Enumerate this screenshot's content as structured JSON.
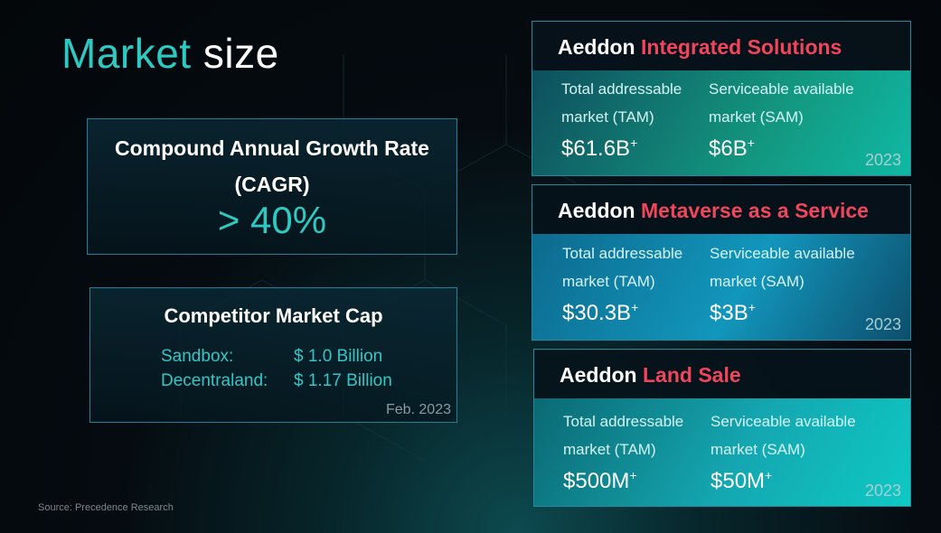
{
  "slide": {
    "title_accent": "Market",
    "title_rest": " size",
    "source": "Source: Precedence Research"
  },
  "cagr": {
    "label": "Compound Annual Growth Rate (CAGR)",
    "value": "> 40%"
  },
  "competitors": {
    "title": "Competitor Market Cap",
    "rows": [
      {
        "name": "Sandbox:",
        "value": "$ 1.0 Billion"
      },
      {
        "name": "Decentraland:",
        "value": "$ 1.17 Billion"
      }
    ],
    "date": "Feb. 2023"
  },
  "cards": [
    {
      "brand": "Aeddon",
      "product": "Integrated Solutions",
      "tam_label": "Total addressable market (TAM)",
      "tam_value": "$61.6B",
      "sam_label": "Serviceable available market (SAM)",
      "sam_value": "$6B",
      "plus": "+",
      "year": "2023"
    },
    {
      "brand": "Aeddon",
      "product": "Metaverse as a Service",
      "tam_label": "Total addressable market (TAM)",
      "tam_value": "$30.3B",
      "sam_label": "Serviceable available market (SAM)",
      "sam_value": "$3B",
      "plus": "+",
      "year": "2023"
    },
    {
      "brand": "Aeddon",
      "product": "Land Sale",
      "tam_label": "Total addressable market (TAM)",
      "tam_value": "$500M",
      "sam_label": "Serviceable available market (SAM)",
      "sam_value": "$50M",
      "plus": "+",
      "year": "2023"
    }
  ],
  "colors": {
    "accent_teal": "#2ec9c0",
    "accent_red": "#f0455c",
    "border": "#1e7f98"
  }
}
